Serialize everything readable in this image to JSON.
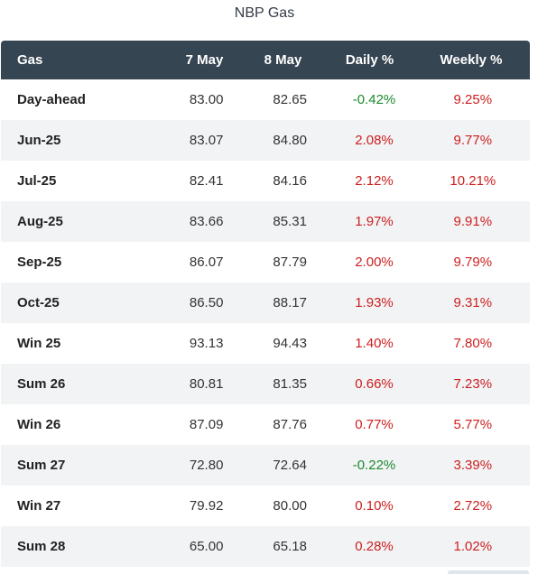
{
  "title": "NBP Gas",
  "columns": {
    "name": "Gas",
    "prev": "7 May",
    "curr": "8 May",
    "daily": "Daily %",
    "weekly": "Weekly %"
  },
  "rows": [
    {
      "name": "Day-ahead",
      "prev": "83.00",
      "curr": "82.65",
      "daily": "-0.42%",
      "weekly": "9.25%"
    },
    {
      "name": "Jun-25",
      "prev": "83.07",
      "curr": "84.80",
      "daily": "2.08%",
      "weekly": "9.77%"
    },
    {
      "name": "Jul-25",
      "prev": "82.41",
      "curr": "84.16",
      "daily": "2.12%",
      "weekly": "10.21%"
    },
    {
      "name": "Aug-25",
      "prev": "83.66",
      "curr": "85.31",
      "daily": "1.97%",
      "weekly": "9.91%"
    },
    {
      "name": "Sep-25",
      "prev": "86.07",
      "curr": "87.79",
      "daily": "2.00%",
      "weekly": "9.79%"
    },
    {
      "name": "Oct-25",
      "prev": "86.50",
      "curr": "88.17",
      "daily": "1.93%",
      "weekly": "9.31%"
    },
    {
      "name": "Win 25",
      "prev": "93.13",
      "curr": "94.43",
      "daily": "1.40%",
      "weekly": "7.80%"
    },
    {
      "name": "Sum 26",
      "prev": "80.81",
      "curr": "81.35",
      "daily": "0.66%",
      "weekly": "7.23%"
    },
    {
      "name": "Win 26",
      "prev": "87.09",
      "curr": "87.76",
      "daily": "0.77%",
      "weekly": "5.77%"
    },
    {
      "name": "Sum 27",
      "prev": "72.80",
      "curr": "72.64",
      "daily": "-0.22%",
      "weekly": "3.39%"
    },
    {
      "name": "Win 27",
      "prev": "79.92",
      "curr": "80.00",
      "daily": "0.10%",
      "weekly": "2.72%"
    },
    {
      "name": "Sum 28",
      "prev": "65.00",
      "curr": "65.18",
      "daily": "0.28%",
      "weekly": "1.02%"
    }
  ],
  "colors": {
    "header_bg": "#364552",
    "alt_row_bg": "#f2f3f5",
    "positive": "#cc1f1f",
    "negative": "#1a8a2e"
  }
}
